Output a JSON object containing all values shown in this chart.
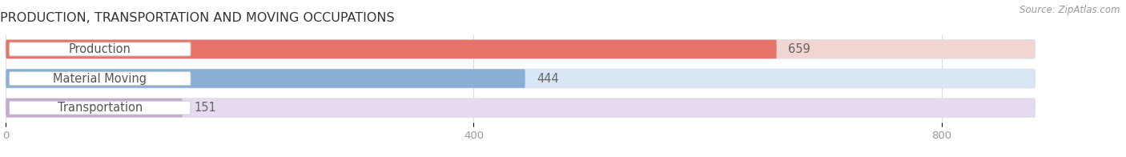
{
  "title": "PRODUCTION, TRANSPORTATION AND MOVING OCCUPATIONS",
  "source_text": "Source: ZipAtlas.com",
  "categories": [
    "Production",
    "Material Moving",
    "Transportation"
  ],
  "values": [
    659,
    444,
    151
  ],
  "bar_colors": [
    "#e8736b",
    "#8aafd4",
    "#c4a8d0"
  ],
  "bar_bg_colors": [
    "#f0d5d2",
    "#d8e6f5",
    "#e5daf0"
  ],
  "xlim_max": 880,
  "xticks": [
    0,
    400,
    800
  ],
  "label_fontsize": 10.5,
  "title_fontsize": 11.5,
  "value_fontsize": 10.5,
  "background_color": "#ffffff",
  "bar_gap": 0.18,
  "label_color": "#555555",
  "value_color": "#666666",
  "tick_color": "#999999",
  "title_color": "#333333",
  "source_color": "#999999",
  "grid_color": "#dddddd"
}
